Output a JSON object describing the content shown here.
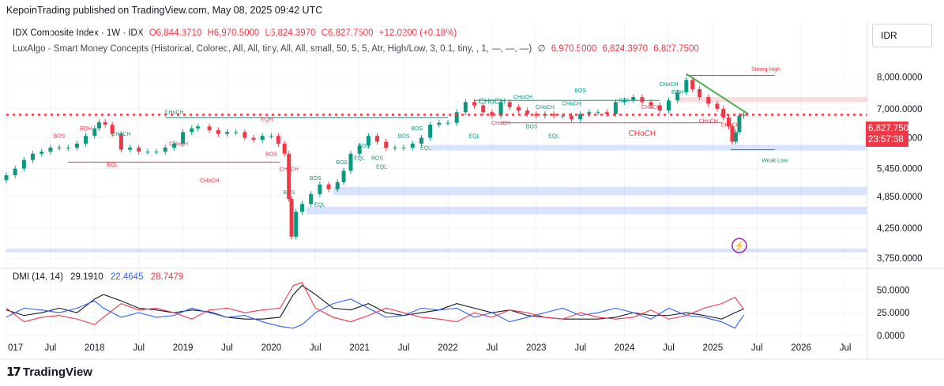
{
  "header": {
    "publisher_line": "KepoinTrading published on TradingView.com, May 08, 2025 09:42 UTC"
  },
  "legend": {
    "symbol": "IDX Composite Index · 1W · IDX",
    "open": "O6,844.3710",
    "high": "H6,970.5000",
    "low": "L6,824.3970",
    "close": "C6,827.7500",
    "change": "+12.0200 (+0.18%)",
    "indicator": "LuxAlgo - Smart Money Concepts (Historical, Colored, All, All, tiny, All, All, small, 50, 5, 5, Atr, High/Low, 3, 0.1, tiny, , 1, —, —, —)",
    "indicator_symbol": "∅",
    "indicator_values": [
      "6,970.5000",
      "6,824.3970",
      "6,827.7500"
    ]
  },
  "currency": "IDR",
  "price_tag": {
    "price": "6,827.7500",
    "countdown": "23:57:38"
  },
  "dmi": {
    "label": "DMI (14, 14)",
    "adx": "29.1910",
    "plus_di": "22.4645",
    "minus_di": "28.7479"
  },
  "brand": {
    "name": "TradingView"
  },
  "colors": {
    "up": "#089981",
    "down": "#f23645",
    "blue": "#2962ff",
    "adx": "#131722",
    "zone_blue": "#2962ff",
    "zone_red": "#f23645",
    "trendline": "#4caf50"
  },
  "chart_data": [
    {
      "type": "candlestick",
      "title": "IDX Composite Index",
      "x_ticks": [
        "017",
        "Jul",
        "2018",
        "Jul",
        "2019",
        "Jul",
        "2020",
        "Jul",
        "2021",
        "Jul",
        "2022",
        "Jul",
        "2023",
        "Jul",
        "2024",
        "Jul",
        "2025",
        "Jul",
        "2026",
        "Jul"
      ],
      "y_ticks": [
        "8,000.0000",
        "7,000.0000",
        "6,200.0000",
        "5,450.0000",
        "4,850.0000",
        "4,250.0000",
        "3,750.0000"
      ],
      "y_scale": "log",
      "ylim": [
        3650,
        8700
      ],
      "xlim": [
        2017.0,
        2026.75
      ],
      "series": [
        {
          "x": [
            2017.0,
            2017.1,
            2017.2,
            2017.3,
            2017.4,
            2017.5,
            2017.6,
            2017.7,
            2017.8,
            2017.9,
            2018.0,
            2018.05,
            2018.12,
            2018.2,
            2018.3,
            2018.4,
            2018.5,
            2018.6,
            2018.7,
            2018.8,
            2018.9,
            2019.0,
            2019.1,
            2019.17,
            2019.3,
            2019.4,
            2019.5,
            2019.6,
            2019.7,
            2019.8,
            2019.9,
            2020.0,
            2020.08,
            2020.15,
            2020.2,
            2020.23,
            2020.28,
            2020.35,
            2020.45,
            2020.55,
            2020.65,
            2020.75,
            2020.82,
            2020.9,
            2021.0,
            2021.1,
            2021.2,
            2021.3,
            2021.4,
            2021.5,
            2021.6,
            2021.7,
            2021.8,
            2021.9,
            2022.0,
            2022.1,
            2022.2,
            2022.3,
            2022.4,
            2022.5,
            2022.6,
            2022.7,
            2022.8,
            2022.9,
            2023.0,
            2023.1,
            2023.2,
            2023.3,
            2023.4,
            2023.5,
            2023.6,
            2023.7,
            2023.8,
            2023.9,
            2024.0,
            2024.1,
            2024.2,
            2024.3,
            2024.4,
            2024.5,
            2024.6,
            2024.7,
            2024.77,
            2024.85,
            2024.95,
            2025.05,
            2025.12,
            2025.18,
            2025.22,
            2025.26,
            2025.3,
            2025.35
          ],
          "close": [
            5300,
            5450,
            5650,
            5800,
            5850,
            5950,
            5950,
            5950,
            6050,
            6250,
            6450,
            6620,
            6550,
            6300,
            5900,
            5950,
            5850,
            5850,
            5850,
            5950,
            6050,
            6350,
            6450,
            6500,
            6400,
            6300,
            6350,
            6350,
            6200,
            6150,
            6250,
            6250,
            6050,
            5800,
            4800,
            4100,
            4550,
            4700,
            4900,
            5100,
            5000,
            5150,
            5400,
            5800,
            6000,
            6250,
            6100,
            5950,
            5950,
            5950,
            6050,
            6200,
            6550,
            6600,
            6600,
            6900,
            7200,
            7100,
            6900,
            6800,
            7200,
            7050,
            6950,
            6850,
            6800,
            6850,
            6800,
            6800,
            6700,
            6850,
            6900,
            6900,
            6850,
            7200,
            7250,
            7350,
            7200,
            7100,
            6950,
            7250,
            7500,
            7900,
            7600,
            7350,
            7150,
            7000,
            6750,
            6500,
            6100,
            6350,
            6800,
            6827.75
          ]
        }
      ],
      "annotations": [
        "BOS",
        "EQH",
        "CHoCH",
        "EQL",
        "Strong High",
        "Weak Low",
        "EQH",
        "BOS",
        "CHoCH",
        "CHoCH",
        "BOS",
        "BOS",
        "BOS",
        "EQL",
        "EQL",
        "BOS",
        "BOS",
        "EQL",
        "EQL",
        "BOS",
        "CHoCH",
        "CHoCH",
        "EQL",
        "CHoCH",
        "BOS",
        "EQH",
        "CHoCH",
        "CHoCH",
        "BOS",
        "CHoCH",
        "CHoCH",
        "BOS",
        "BOS",
        "EQL",
        "CHoCH",
        "CHoCH",
        "CHoCH",
        "CHoCH",
        "CHoCH"
      ],
      "horizontal_line": 6827.75
    },
    {
      "type": "line",
      "title": "DMI (14, 14)",
      "y_ticks": [
        "50.0000",
        "25.0000",
        "0.0000"
      ],
      "ylim": [
        0,
        65
      ],
      "series": [
        {
          "name": "ADX",
          "x": [
            2017.0,
            2017.2,
            2017.4,
            2017.6,
            2017.8,
            2018.0,
            2018.1,
            2018.3,
            2018.5,
            2018.7,
            2018.9,
            2019.1,
            2019.3,
            2019.5,
            2019.7,
            2019.9,
            2020.1,
            2020.25,
            2020.35,
            2020.5,
            2020.7,
            2020.9,
            2021.1,
            2021.3,
            2021.5,
            2021.7,
            2021.9,
            2022.1,
            2022.3,
            2022.5,
            2022.7,
            2022.9,
            2023.1,
            2023.3,
            2023.5,
            2023.7,
            2023.9,
            2024.1,
            2024.3,
            2024.5,
            2024.7,
            2024.9,
            2025.1,
            2025.25,
            2025.35
          ],
          "values": [
            28,
            22,
            25,
            30,
            25,
            40,
            45,
            38,
            30,
            28,
            25,
            28,
            26,
            20,
            18,
            18,
            20,
            45,
            55,
            45,
            30,
            28,
            35,
            25,
            22,
            25,
            28,
            35,
            30,
            25,
            28,
            22,
            20,
            18,
            18,
            18,
            20,
            25,
            22,
            22,
            25,
            22,
            18,
            25,
            29.191
          ]
        },
        {
          "name": "+DI",
          "x": [
            2017.0,
            2017.2,
            2017.4,
            2017.6,
            2017.8,
            2018.0,
            2018.1,
            2018.3,
            2018.5,
            2018.7,
            2018.9,
            2019.1,
            2019.3,
            2019.5,
            2019.7,
            2019.9,
            2020.1,
            2020.25,
            2020.35,
            2020.5,
            2020.7,
            2020.9,
            2021.1,
            2021.3,
            2021.5,
            2021.7,
            2021.9,
            2022.1,
            2022.3,
            2022.5,
            2022.7,
            2022.9,
            2023.1,
            2023.3,
            2023.5,
            2023.7,
            2023.9,
            2024.1,
            2024.3,
            2024.5,
            2024.7,
            2024.9,
            2025.1,
            2025.25,
            2025.35
          ],
          "values": [
            20,
            30,
            28,
            25,
            30,
            38,
            30,
            20,
            25,
            20,
            22,
            30,
            25,
            20,
            22,
            15,
            10,
            8,
            12,
            25,
            35,
            40,
            30,
            20,
            22,
            30,
            28,
            30,
            20,
            25,
            15,
            20,
            25,
            30,
            22,
            25,
            30,
            25,
            18,
            30,
            22,
            20,
            15,
            8,
            22.4645
          ]
        },
        {
          "name": "-DI",
          "x": [
            2017.0,
            2017.2,
            2017.4,
            2017.6,
            2017.8,
            2018.0,
            2018.1,
            2018.3,
            2018.5,
            2018.7,
            2018.9,
            2019.1,
            2019.3,
            2019.5,
            2019.7,
            2019.9,
            2020.1,
            2020.25,
            2020.35,
            2020.5,
            2020.7,
            2020.9,
            2021.1,
            2021.3,
            2021.5,
            2021.7,
            2021.9,
            2022.1,
            2022.3,
            2022.5,
            2022.7,
            2022.9,
            2023.1,
            2023.3,
            2023.5,
            2023.7,
            2023.9,
            2024.1,
            2024.3,
            2024.5,
            2024.7,
            2024.9,
            2025.1,
            2025.25,
            2025.35
          ],
          "values": [
            30,
            15,
            20,
            22,
            18,
            12,
            20,
            35,
            28,
            30,
            25,
            18,
            28,
            30,
            25,
            28,
            30,
            55,
            58,
            30,
            20,
            15,
            22,
            30,
            25,
            20,
            18,
            15,
            25,
            20,
            28,
            25,
            20,
            18,
            25,
            20,
            18,
            20,
            28,
            18,
            22,
            30,
            35,
            42,
            28.7479
          ]
        }
      ]
    }
  ]
}
